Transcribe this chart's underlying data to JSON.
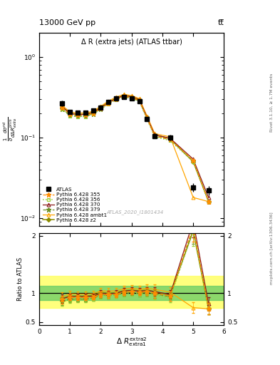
{
  "title_top": "13000 GeV pp",
  "title_top_right": "tt̅",
  "plot_title": "Δ R (extra jets) (ATLAS ttbar)",
  "watermark": "ATLAS_2020_I1801434",
  "right_label_top": "Rivet 3.1.10, ≥ 1.7M events",
  "right_label_bot": "mcplots.cern.ch [arXiv:1306.3436]",
  "ylabel_ratio": "Ratio to ATLAS",
  "x_centers": [
    0.75,
    1.0,
    1.25,
    1.5,
    1.75,
    2.0,
    2.25,
    2.5,
    2.75,
    3.0,
    3.25,
    3.5,
    3.75,
    4.25,
    5.0,
    5.5
  ],
  "atlas_y": [
    0.265,
    0.21,
    0.205,
    0.205,
    0.215,
    0.235,
    0.275,
    0.305,
    0.32,
    0.305,
    0.285,
    0.17,
    0.105,
    0.1,
    0.024,
    0.022
  ],
  "atlas_yerr": [
    0.022,
    0.012,
    0.01,
    0.01,
    0.01,
    0.012,
    0.015,
    0.015,
    0.015,
    0.015,
    0.015,
    0.01,
    0.008,
    0.008,
    0.003,
    0.003
  ],
  "py355_y": [
    0.235,
    0.195,
    0.19,
    0.19,
    0.2,
    0.23,
    0.268,
    0.3,
    0.325,
    0.315,
    0.29,
    0.175,
    0.105,
    0.095,
    0.052,
    0.016
  ],
  "py356_y": [
    0.225,
    0.185,
    0.182,
    0.182,
    0.195,
    0.225,
    0.262,
    0.295,
    0.318,
    0.308,
    0.282,
    0.17,
    0.102,
    0.092,
    0.05,
    0.016
  ],
  "py370_y": [
    0.24,
    0.198,
    0.193,
    0.193,
    0.204,
    0.235,
    0.272,
    0.305,
    0.332,
    0.32,
    0.295,
    0.178,
    0.108,
    0.098,
    0.054,
    0.018
  ],
  "py379_y": [
    0.228,
    0.188,
    0.184,
    0.184,
    0.197,
    0.228,
    0.265,
    0.298,
    0.32,
    0.31,
    0.285,
    0.172,
    0.104,
    0.094,
    0.051,
    0.016
  ],
  "pyambt1_y": [
    0.25,
    0.208,
    0.202,
    0.202,
    0.213,
    0.245,
    0.285,
    0.318,
    0.345,
    0.332,
    0.305,
    0.185,
    0.112,
    0.102,
    0.018,
    0.016
  ],
  "pyz2_y": [
    0.242,
    0.2,
    0.195,
    0.195,
    0.207,
    0.238,
    0.276,
    0.308,
    0.335,
    0.322,
    0.297,
    0.18,
    0.108,
    0.097,
    0.05,
    0.016
  ],
  "color_355": "#FF8C00",
  "color_356": "#9ACD32",
  "color_370": "#8B1A1A",
  "color_379": "#6B8E23",
  "color_ambt1": "#FFA500",
  "color_z2": "#8B8B00",
  "ylim_main": [
    0.008,
    2.0
  ],
  "ylim_ratio": [
    0.45,
    2.05
  ],
  "xlim": [
    0.0,
    6.0
  ],
  "ratio_yticks": [
    0.5,
    1.0,
    2.0
  ],
  "band_yellow_lo": 0.75,
  "band_yellow_hi": 1.3,
  "band_green_lo": 0.875,
  "band_green_hi": 1.125
}
